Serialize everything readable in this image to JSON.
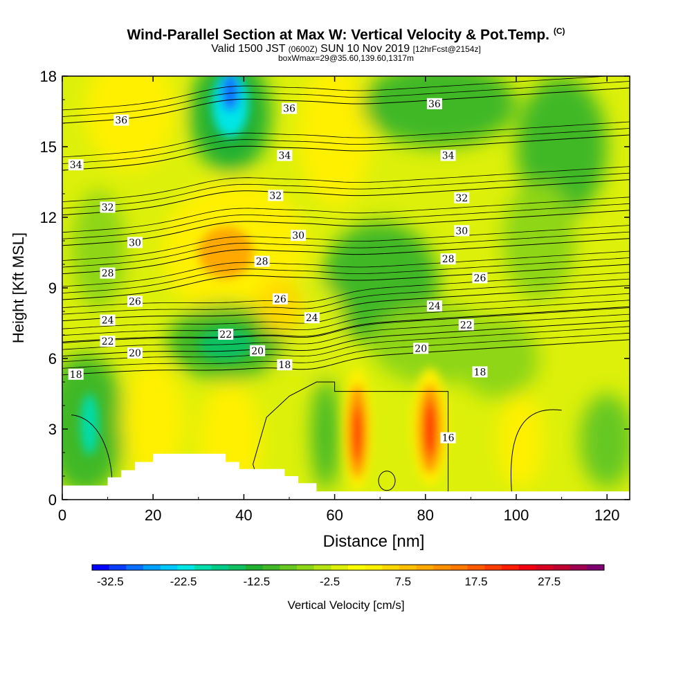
{
  "title": {
    "main": "Wind-Parallel Section at Max W: Vertical Velocity & Pot.Temp.",
    "copyright": "(C)",
    "valid_prefix": "Valid 1500 JST",
    "valid_zulu": "(0600Z)",
    "valid_date": "SUN 10 Nov 2019",
    "forecast": "[12hrFcst@2154z]",
    "box_info": "boxWmax=29@35.60,139.60,1317m"
  },
  "chart_data": {
    "type": "heatmap",
    "xlabel": "Distance [nm]",
    "ylabel": "Height [Kft MSL]",
    "xlim": [
      0,
      125
    ],
    "ylim": [
      0,
      18
    ],
    "xticks": [
      0,
      20,
      40,
      60,
      80,
      100,
      120
    ],
    "yticks": [
      0,
      3,
      6,
      9,
      12,
      15,
      18
    ],
    "colorbar": {
      "label": "Vertical Velocity [cm/s]",
      "tick_labels": [
        "-32.5",
        "-22.5",
        "-12.5",
        "-2.5",
        "7.5",
        "17.5",
        "27.5"
      ],
      "range": [
        -35,
        35
      ],
      "step": 2.5,
      "colors": [
        "#0000ff",
        "#0a3cff",
        "#0a6eff",
        "#00a0ff",
        "#00c8ff",
        "#00e6e6",
        "#00dcaa",
        "#00cc88",
        "#10c060",
        "#20b030",
        "#40b828",
        "#66c820",
        "#8ed618",
        "#b4e412",
        "#dcf00a",
        "#ffff00",
        "#fff000",
        "#ffd800",
        "#ffc000",
        "#ffa800",
        "#ff9000",
        "#ff7800",
        "#ff5a00",
        "#ff3c00",
        "#ff1e00",
        "#f00010",
        "#d80020",
        "#c00030",
        "#a00050",
        "#800070"
      ]
    },
    "highlights": [
      {
        "x": 36,
        "y": 17.2,
        "value": -30
      },
      {
        "x": 6,
        "y": 3.2,
        "value": -20
      },
      {
        "x": 65,
        "y": 2.8,
        "value": 29
      },
      {
        "x": 81,
        "y": 3.0,
        "value": 29
      },
      {
        "x": 36,
        "y": 10.6,
        "value": 13
      },
      {
        "x": 36,
        "y": 6.6,
        "value": -12
      },
      {
        "x": 82,
        "y": 16.8,
        "value": -10
      }
    ],
    "isentrope_labels": [
      {
        "text": "36",
        "x": 13,
        "y": 16.1
      },
      {
        "text": "36",
        "x": 50,
        "y": 16.6
      },
      {
        "text": "36",
        "x": 82,
        "y": 16.8
      },
      {
        "text": "34",
        "x": 3,
        "y": 14.2
      },
      {
        "text": "34",
        "x": 49,
        "y": 14.6
      },
      {
        "text": "34",
        "x": 85,
        "y": 14.6
      },
      {
        "text": "32",
        "x": 10,
        "y": 12.4
      },
      {
        "text": "32",
        "x": 47,
        "y": 12.9
      },
      {
        "text": "32",
        "x": 88,
        "y": 12.8
      },
      {
        "text": "30",
        "x": 16,
        "y": 10.9
      },
      {
        "text": "30",
        "x": 52,
        "y": 11.2
      },
      {
        "text": "30",
        "x": 88,
        "y": 11.4
      },
      {
        "text": "28",
        "x": 10,
        "y": 9.6
      },
      {
        "text": "28",
        "x": 44,
        "y": 10.1
      },
      {
        "text": "28",
        "x": 85,
        "y": 10.2
      },
      {
        "text": "26",
        "x": 16,
        "y": 8.4
      },
      {
        "text": "26",
        "x": 48,
        "y": 8.5
      },
      {
        "text": "26",
        "x": 92,
        "y": 9.4
      },
      {
        "text": "24",
        "x": 10,
        "y": 7.6
      },
      {
        "text": "24",
        "x": 55,
        "y": 7.7
      },
      {
        "text": "24",
        "x": 82,
        "y": 8.2
      },
      {
        "text": "22",
        "x": 10,
        "y": 6.7
      },
      {
        "text": "22",
        "x": 36,
        "y": 7.0
      },
      {
        "text": "22",
        "x": 89,
        "y": 7.4
      },
      {
        "text": "20",
        "x": 16,
        "y": 6.2
      },
      {
        "text": "20",
        "x": 43,
        "y": 6.3
      },
      {
        "text": "20",
        "x": 79,
        "y": 6.4
      },
      {
        "text": "18",
        "x": 3,
        "y": 5.3
      },
      {
        "text": "18",
        "x": 49,
        "y": 5.7
      },
      {
        "text": "18",
        "x": 92,
        "y": 5.4
      },
      {
        "text": "16",
        "x": 85,
        "y": 2.6
      }
    ],
    "terrain_profile": [
      [
        0,
        0.6
      ],
      [
        10,
        0.6
      ],
      [
        10,
        0.95
      ],
      [
        13,
        0.95
      ],
      [
        13,
        1.25
      ],
      [
        16,
        1.25
      ],
      [
        16,
        1.6
      ],
      [
        20,
        1.6
      ],
      [
        20,
        1.95
      ],
      [
        36,
        1.95
      ],
      [
        36,
        1.6
      ],
      [
        39,
        1.6
      ],
      [
        39,
        1.3
      ],
      [
        49,
        1.3
      ],
      [
        49,
        1.0
      ],
      [
        52,
        1.0
      ],
      [
        52,
        0.7
      ],
      [
        56,
        0.7
      ],
      [
        56,
        0.35
      ],
      [
        125,
        0.35
      ]
    ]
  }
}
